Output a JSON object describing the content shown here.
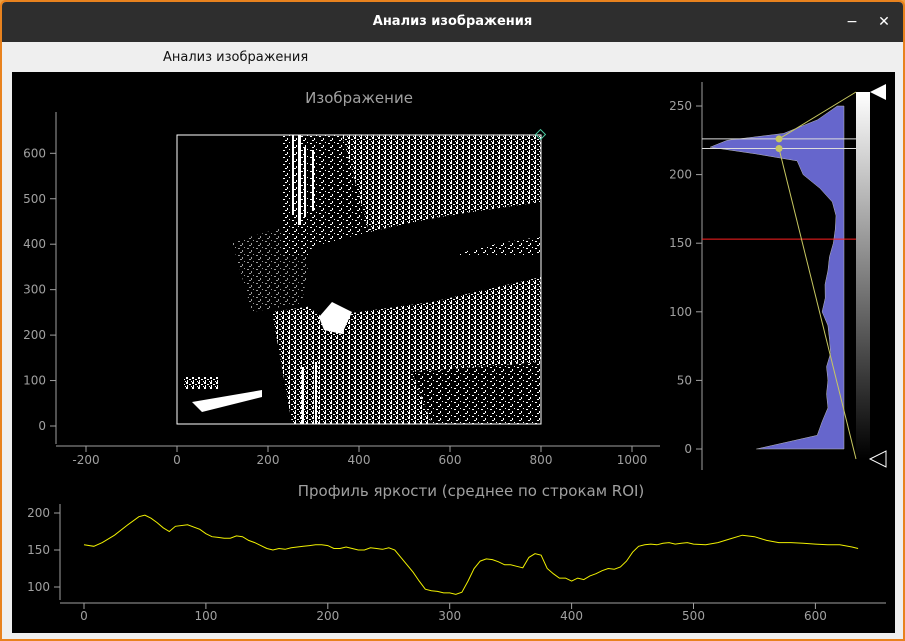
{
  "window": {
    "title": "Анализ изображения",
    "minimize": "−",
    "close": "✕"
  },
  "menu": {
    "label": "Анализ изображения"
  },
  "image_plot": {
    "title": "Изображение",
    "x_ticks": [
      "-200",
      "0",
      "200",
      "400",
      "600",
      "800",
      "1000"
    ],
    "y_ticks": [
      "0",
      "100",
      "200",
      "300",
      "400",
      "500",
      "600"
    ]
  },
  "histogram": {
    "y_ticks": [
      "0",
      "50",
      "100",
      "150",
      "200",
      "250"
    ],
    "levels": {
      "min": 0,
      "max": 255,
      "threshold": 153,
      "region_low": 219,
      "region_high": 226
    }
  },
  "profile_plot": {
    "title": "Профиль яркости (среднее по строкам ROI)",
    "x_ticks": [
      "0",
      "100",
      "200",
      "300",
      "400",
      "500",
      "600"
    ],
    "y_ticks": [
      "100",
      "150",
      "200"
    ]
  },
  "colors": {
    "background": "#000000",
    "axis": "#a0a0a0",
    "profile_line": "#f0f000",
    "histogram_fill": "#6666cc",
    "threshold_line": "#ff2020",
    "roi_border": "#ffffff"
  },
  "chart_data": [
    {
      "type": "line",
      "title": "Профиль яркости (среднее по строкам ROI)",
      "xlabel": "",
      "ylabel": "",
      "xlim": [
        -10,
        660
      ],
      "ylim": [
        85,
        205
      ],
      "x": [
        0,
        8,
        15,
        25,
        35,
        45,
        50,
        55,
        60,
        65,
        70,
        75,
        85,
        95,
        100,
        105,
        110,
        115,
        120,
        125,
        130,
        135,
        140,
        145,
        150,
        155,
        160,
        165,
        170,
        175,
        180,
        185,
        190,
        195,
        200,
        205,
        210,
        215,
        220,
        225,
        230,
        235,
        240,
        245,
        250,
        255,
        260,
        265,
        270,
        275,
        280,
        285,
        290,
        295,
        300,
        305,
        310,
        315,
        320,
        325,
        330,
        335,
        340,
        345,
        350,
        355,
        360,
        365,
        370,
        375,
        380,
        385,
        390,
        395,
        400,
        405,
        410,
        415,
        420,
        425,
        430,
        435,
        440,
        445,
        450,
        455,
        460,
        465,
        470,
        475,
        480,
        485,
        490,
        495,
        500,
        510,
        520,
        530,
        540,
        550,
        560,
        570,
        580,
        590,
        600,
        610,
        620,
        630,
        635
      ],
      "values": [
        157,
        155,
        160,
        170,
        183,
        195,
        197,
        193,
        187,
        180,
        175,
        182,
        184,
        178,
        172,
        168,
        167,
        166,
        166,
        169,
        168,
        163,
        160,
        156,
        152,
        150,
        152,
        151,
        153,
        154,
        155,
        156,
        157,
        157,
        156,
        152,
        152,
        154,
        152,
        150,
        150,
        153,
        152,
        151,
        153,
        150,
        140,
        130,
        120,
        108,
        97,
        95,
        94,
        92,
        92,
        90,
        93,
        108,
        125,
        135,
        138,
        137,
        134,
        130,
        130,
        128,
        126,
        140,
        145,
        143,
        125,
        118,
        112,
        112,
        108,
        112,
        110,
        115,
        118,
        122,
        125,
        124,
        127,
        135,
        147,
        155,
        157,
        158,
        157,
        159,
        160,
        158,
        159,
        160,
        158,
        157,
        160,
        165,
        170,
        168,
        163,
        160,
        160,
        159,
        158,
        157,
        157,
        154,
        152
      ]
    },
    {
      "type": "area",
      "title": "",
      "xlabel": "",
      "ylabel": "",
      "ylim": [
        -5,
        262
      ],
      "x": [
        0,
        10,
        20,
        30,
        40,
        50,
        60,
        70,
        80,
        90,
        100,
        110,
        120,
        130,
        140,
        150,
        160,
        170,
        180,
        190,
        200,
        210,
        215,
        220,
        225,
        230,
        240,
        250
      ],
      "values": [
        0.6,
        0.2,
        0.15,
        0.12,
        0.12,
        0.12,
        0.12,
        0.1,
        0.1,
        0.12,
        0.15,
        0.14,
        0.13,
        0.12,
        0.1,
        0.08,
        0.06,
        0.06,
        0.08,
        0.18,
        0.28,
        0.35,
        0.6,
        1.0,
        0.8,
        0.45,
        0.18,
        0.05
      ]
    }
  ]
}
